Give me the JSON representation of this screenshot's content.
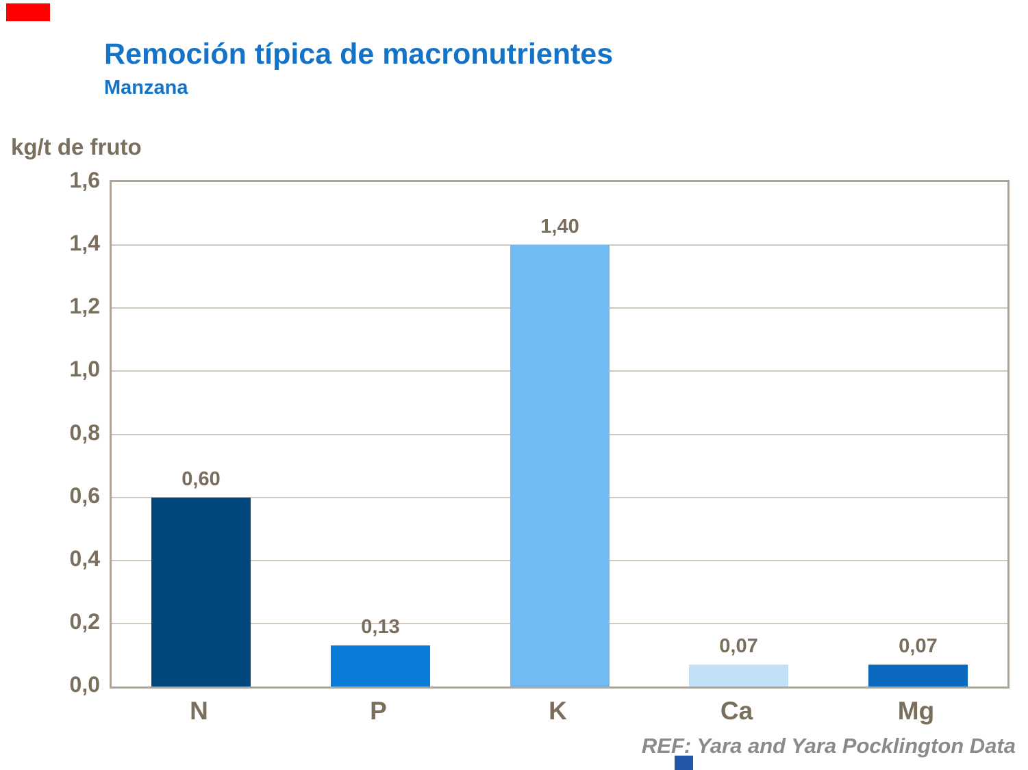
{
  "title": "Remoción típica de macronutrientes",
  "subtitle": "Manzana",
  "unit_label": "kg/t de fruto",
  "footer": "REF: Yara and Yara Pocklington Data",
  "accent_colors": {
    "title_blue": "#1473c6",
    "axis_text": "#7a6e5d",
    "red_mark": "#ff0000",
    "blue_mark": "#2457a8",
    "grid": "#d2c9bd",
    "plot_border": "#afa396"
  },
  "chart_data": {
    "type": "bar",
    "title": "Remoción típica de macronutrientes",
    "subtitle": "Manzana",
    "ylabel": "kg/t de fruto",
    "xlabel": "",
    "categories": [
      "N",
      "P",
      "K",
      "Ca",
      "Mg"
    ],
    "values": [
      0.6,
      0.13,
      1.4,
      0.07,
      0.07
    ],
    "value_labels": [
      "0,60",
      "0,13",
      "1,40",
      "0,07",
      "0,07"
    ],
    "bar_colors": [
      "#00477d",
      "#0c7cd9",
      "#6fbbf2",
      "#c2e0f8",
      "#0a69be"
    ],
    "ylim": [
      0,
      1.6
    ],
    "ytick_step": 0.2,
    "ytick_labels": [
      "0,0",
      "0,2",
      "0,4",
      "0,6",
      "0,8",
      "1,0",
      "1,2",
      "1,4",
      "1,6"
    ],
    "grid": true,
    "legend": false,
    "source": "REF: Yara and Yara Pocklington Data"
  }
}
